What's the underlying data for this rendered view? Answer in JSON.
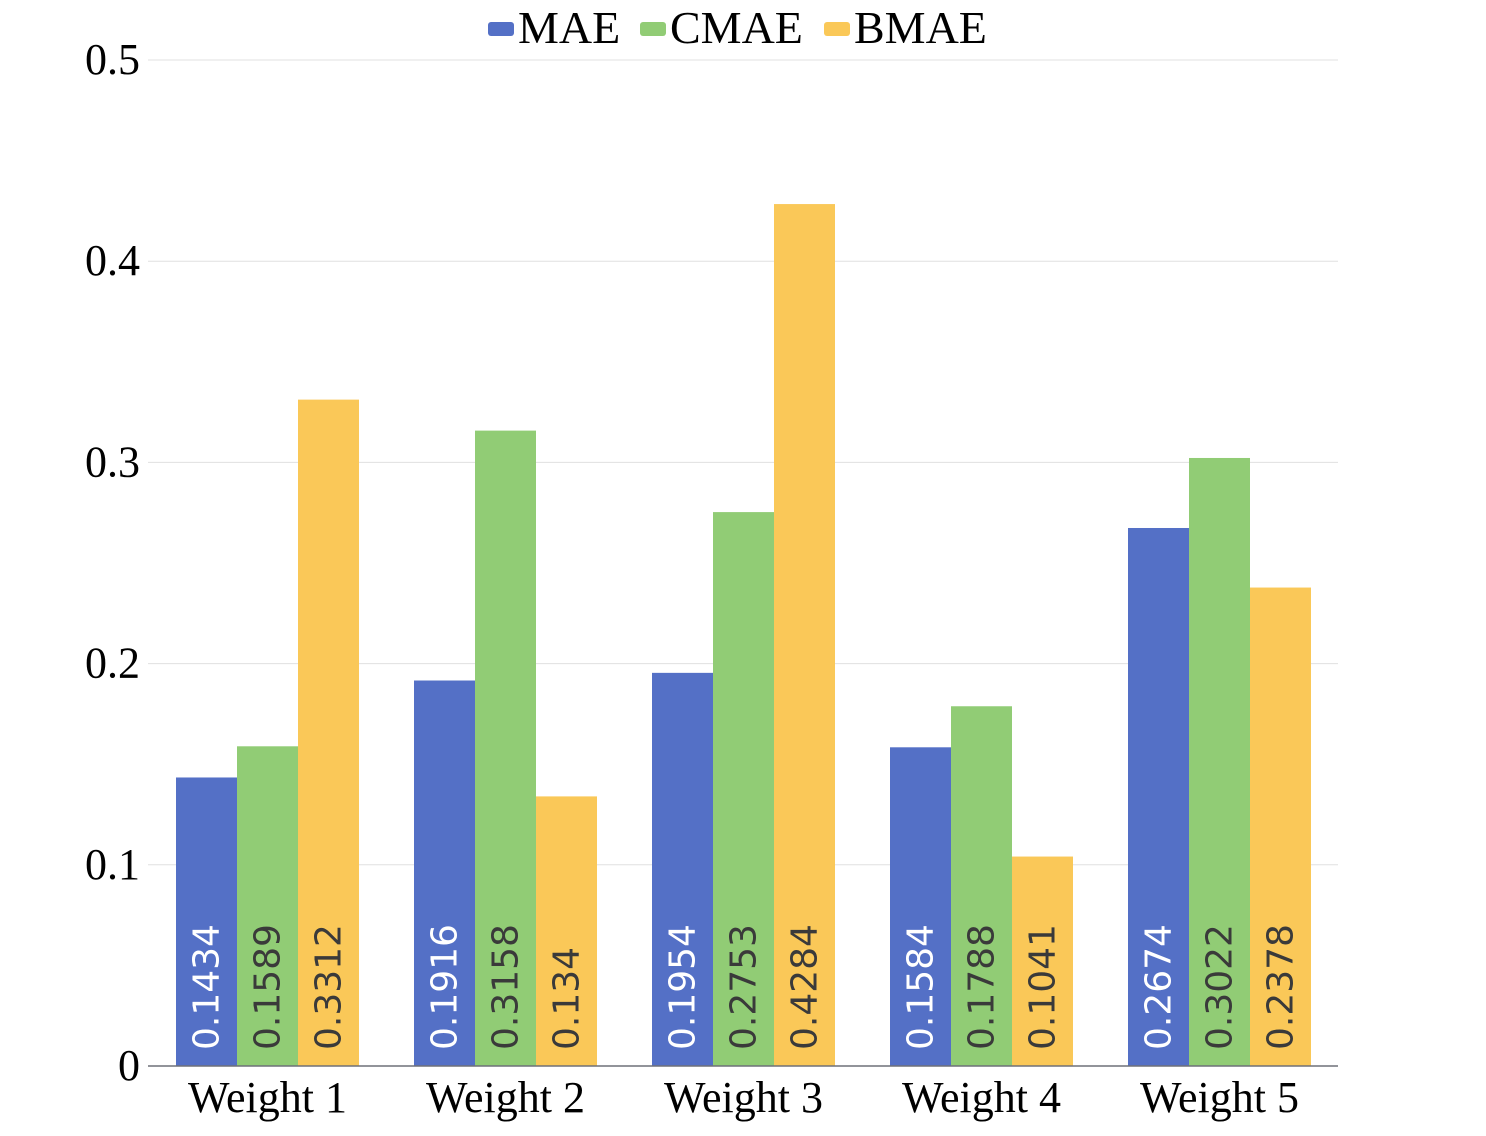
{
  "chart_data": {
    "type": "bar",
    "title": "",
    "xlabel": "",
    "ylabel": "",
    "categories": [
      "Weight 1",
      "Weight 2",
      "Weight 3",
      "Weight 4",
      "Weight 5"
    ],
    "series": [
      {
        "name": "MAE",
        "color": "#5470c6",
        "label_color": "#ffffff",
        "values": [
          0.1434,
          0.1916,
          0.1954,
          0.1584,
          0.2674
        ]
      },
      {
        "name": "CMAE",
        "color": "#91cc75",
        "label_color": "#3a3a3a",
        "values": [
          0.1589,
          0.3158,
          0.2753,
          0.1788,
          0.3022
        ]
      },
      {
        "name": "BMAE",
        "color": "#fac858",
        "label_color": "#3a3a3a",
        "values": [
          0.3312,
          0.134,
          0.4284,
          0.1041,
          0.2378
        ]
      }
    ],
    "data_labels": [
      [
        "0.1434",
        "0.1916",
        "0.1954",
        "0.1584",
        "0.2674"
      ],
      [
        "0.1589",
        "0.3158",
        "0.2753",
        "0.1788",
        "0.3022"
      ],
      [
        "0.3312",
        "0.134",
        "0.4284",
        "0.1041",
        "0.2378"
      ]
    ],
    "ylim": [
      0,
      0.5
    ],
    "yticks": [
      0,
      0.1,
      0.2,
      0.3,
      0.4,
      0.5
    ],
    "ytick_labels": [
      "0",
      "0.1",
      "0.2",
      "0.3",
      "0.4",
      "0.5"
    ],
    "grid": true,
    "legend_position": "top-center"
  }
}
